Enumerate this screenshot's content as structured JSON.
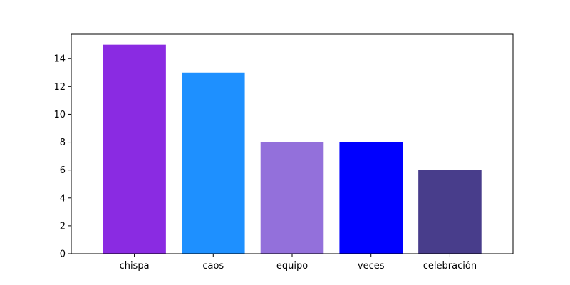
{
  "chart_data": {
    "type": "bar",
    "title": "",
    "xlabel": "",
    "ylabel": "",
    "categories": [
      "chispa",
      "caos",
      "equipo",
      "veces",
      "celebración"
    ],
    "values": [
      15,
      13,
      8,
      8,
      6
    ],
    "colors": [
      "#8a2be2",
      "#1e90ff",
      "#9370db",
      "#0000ff",
      "#483d8b"
    ],
    "ylim": [
      0,
      15.75
    ],
    "yticks": [
      0,
      2,
      4,
      6,
      8,
      10,
      12,
      14
    ],
    "grid": false,
    "legend": "none"
  }
}
